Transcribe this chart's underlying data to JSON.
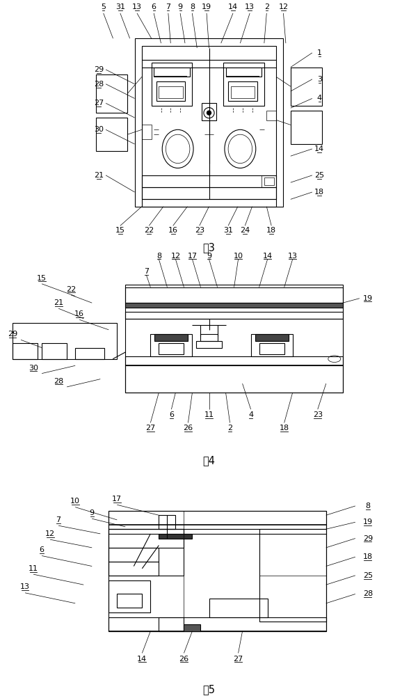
{
  "fig_width": 6.01,
  "fig_height": 10.0,
  "dpi": 100,
  "bg_color": "#ffffff",
  "lc": "#000000",
  "lw": 0.8,
  "tlw": 0.5,
  "fs": 8.0,
  "cap_fs": 10.5,
  "fig3_caption": "图3",
  "fig4_caption": "图4",
  "fig5_caption": "图5"
}
